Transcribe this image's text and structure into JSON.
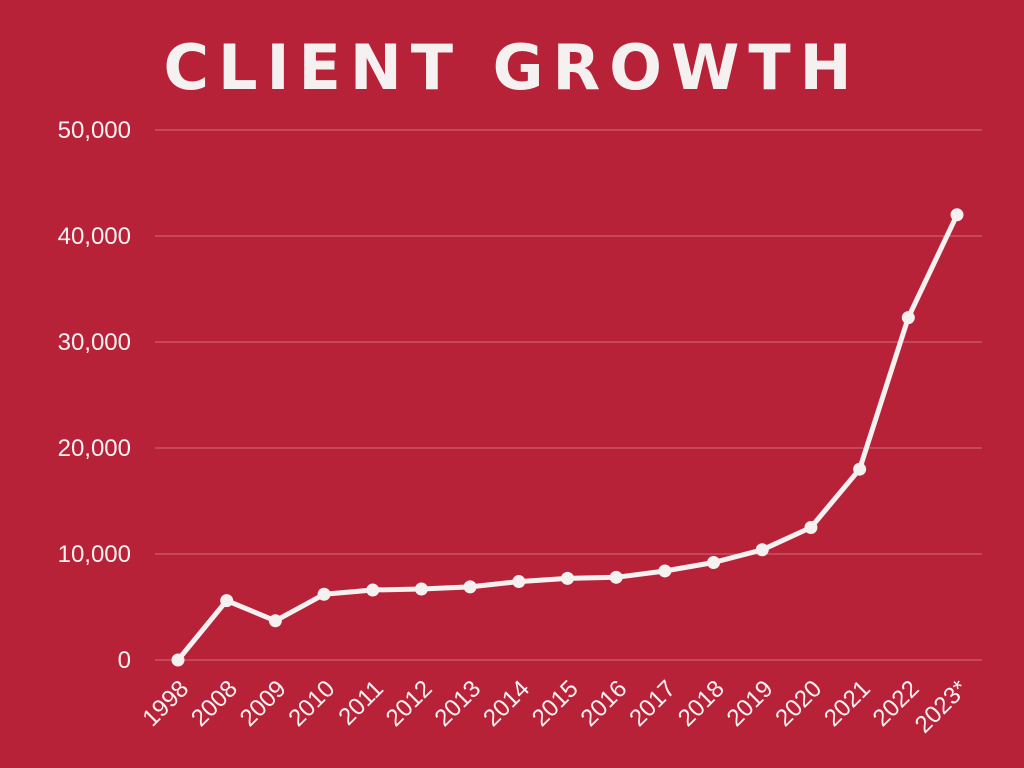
{
  "colors": {
    "background": "#b82238",
    "foreground": "#f6f1f1"
  },
  "chart_data": {
    "type": "line",
    "title": "CLIENT GROWTH",
    "xlabel": "",
    "ylabel": "",
    "categories": [
      "1998",
      "2008",
      "2009",
      "2010",
      "2011",
      "2012",
      "2013",
      "2014",
      "2015",
      "2016",
      "2017",
      "2018",
      "2019",
      "2020",
      "2021",
      "2022",
      "2023*"
    ],
    "values": [
      0,
      5600,
      3700,
      6200,
      6600,
      6700,
      6900,
      7400,
      7700,
      7800,
      8400,
      9200,
      10400,
      12500,
      18000,
      32300,
      42000
    ],
    "ylim": [
      0,
      50000
    ],
    "yticks": [
      0,
      10000,
      20000,
      30000,
      40000,
      50000
    ],
    "ytick_labels": [
      "0",
      "10,000",
      "20,000",
      "30,000",
      "40,000",
      "50,000"
    ],
    "grid": true,
    "legend": "none"
  }
}
